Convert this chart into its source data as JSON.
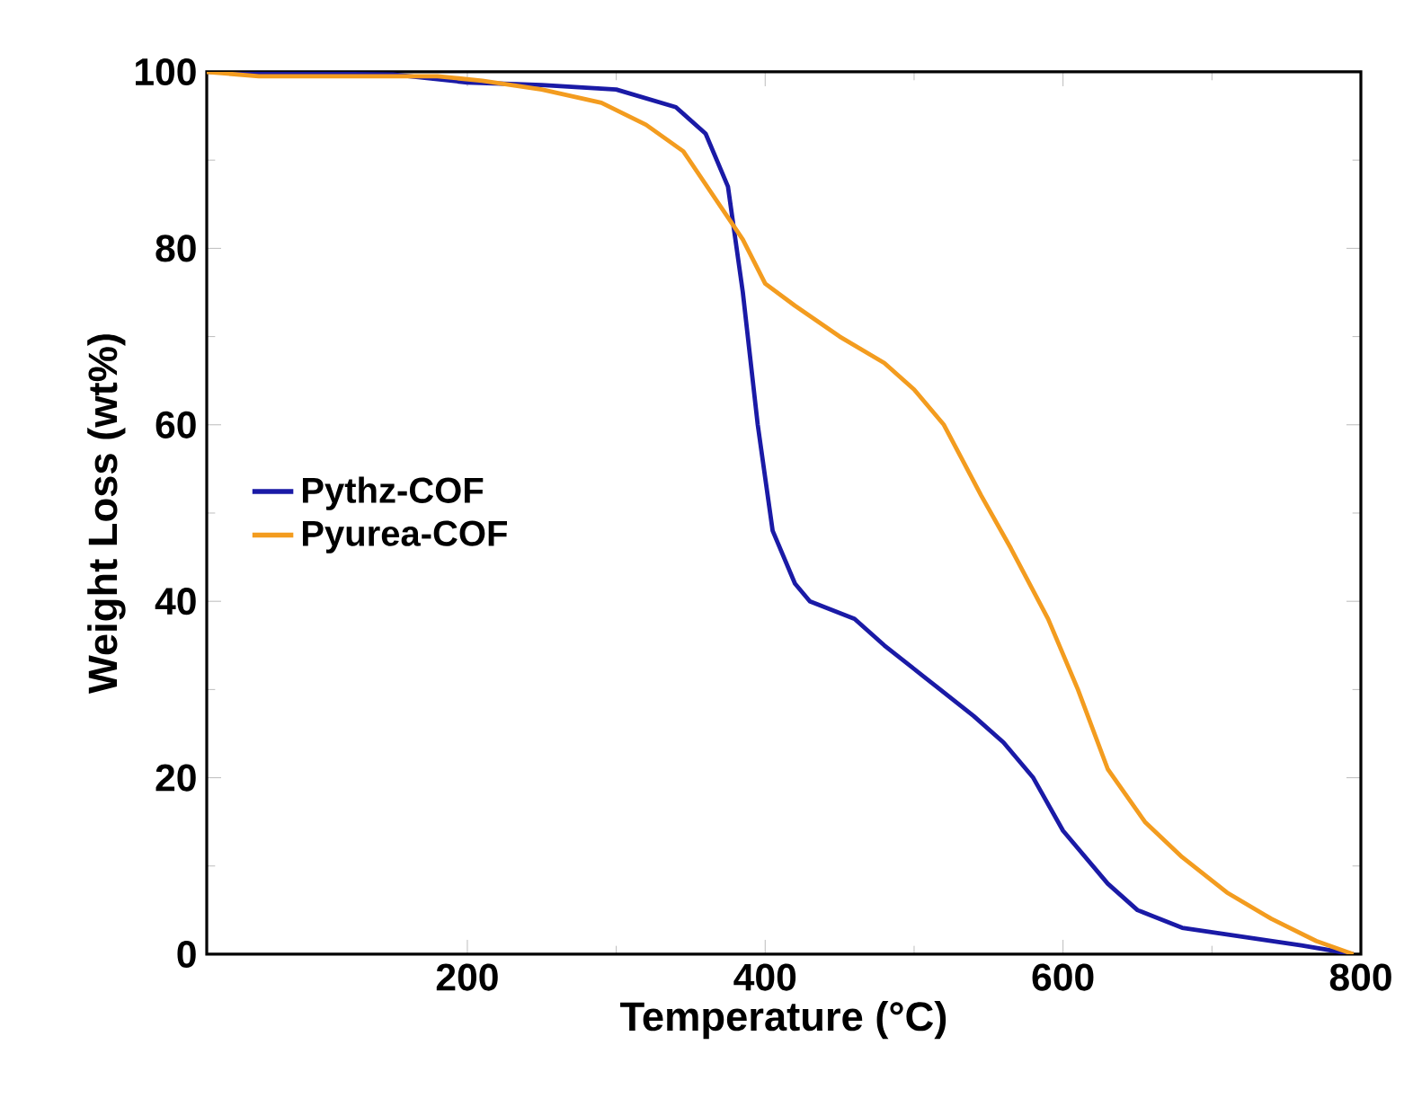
{
  "chart_data": {
    "type": "line",
    "xlabel": "Temperature (°C)",
    "ylabel": "Weight Loss (wt%)",
    "xlim": [
      25,
      800
    ],
    "ylim": [
      0,
      100
    ],
    "xticks": [
      200,
      400,
      600,
      800
    ],
    "yticks": [
      0,
      20,
      40,
      60,
      80,
      100
    ],
    "grid": false,
    "legend": "left",
    "line_style": "solid",
    "marker": "none",
    "series": [
      {
        "name": "Pythz-COF",
        "color": "#1a1aa6",
        "x": [
          25,
          60,
          100,
          150,
          200,
          250,
          300,
          340,
          360,
          375,
          385,
          395,
          405,
          420,
          430,
          460,
          480,
          510,
          540,
          560,
          580,
          600,
          630,
          650,
          680,
          720,
          760,
          795
        ],
        "values": [
          100,
          99.9,
          99.8,
          99.7,
          98.8,
          98.5,
          98,
          96,
          93,
          87,
          75,
          60,
          48,
          42,
          40,
          38,
          35,
          31,
          27,
          24,
          20,
          14,
          8,
          5,
          3,
          2,
          1,
          0
        ]
      },
      {
        "name": "Pyurea-COF",
        "color": "#f39c1f",
        "x": [
          25,
          60,
          100,
          150,
          180,
          210,
          250,
          290,
          320,
          345,
          365,
          385,
          400,
          420,
          450,
          480,
          500,
          520,
          545,
          565,
          590,
          610,
          630,
          655,
          680,
          710,
          740,
          770,
          795
        ],
        "values": [
          100,
          99.5,
          99.5,
          99.5,
          99.5,
          99,
          98,
          96.5,
          94,
          91,
          86,
          81,
          76,
          73.5,
          70,
          67,
          64,
          60,
          52,
          46,
          38,
          30,
          21,
          15,
          11,
          7,
          4,
          1.5,
          0
        ]
      }
    ]
  }
}
